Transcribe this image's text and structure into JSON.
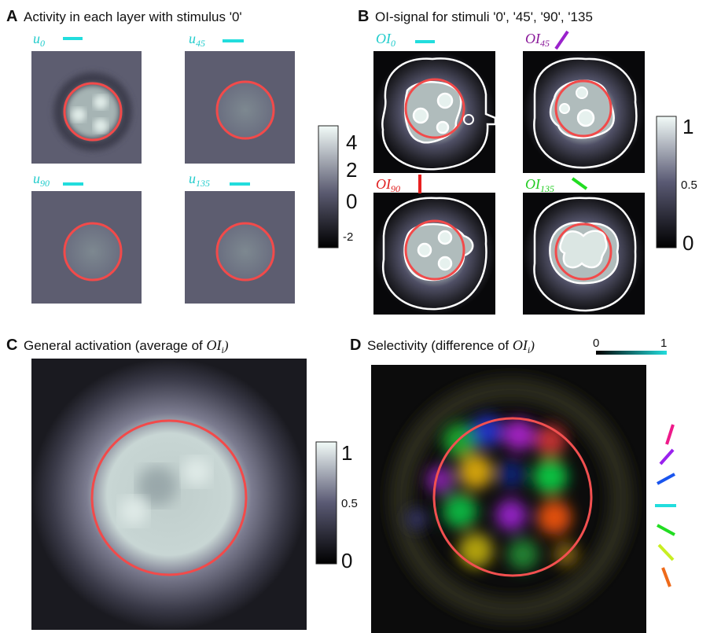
{
  "panels": [
    {
      "letter": "A",
      "title": "Activity in each layer with stimulus '0'",
      "images": [
        {
          "label": "u",
          "sub": "0"
        },
        {
          "label": "u",
          "sub": "45"
        },
        {
          "label": "u",
          "sub": "90"
        },
        {
          "label": "u",
          "sub": "135"
        }
      ],
      "colorbar": {
        "ticks": [
          4,
          2,
          0,
          -2
        ]
      }
    },
    {
      "letter": "B",
      "title": "OI-signal for stimuli '0', '45', '90', '135",
      "images": [
        {
          "label": "OI",
          "sub": "0"
        },
        {
          "label": "OI",
          "sub": "45"
        },
        {
          "label": "OI",
          "sub": "90"
        },
        {
          "label": "OI",
          "sub": "135"
        }
      ],
      "colorbar": {
        "ticks": [
          1,
          0.5,
          0
        ]
      }
    },
    {
      "letter": "C",
      "title": "General activation (average of ",
      "title_math": "OI",
      "title_sub": "i",
      "title_end": ")",
      "colorbar": {
        "ticks": [
          1,
          0.5,
          0
        ]
      }
    },
    {
      "letter": "D",
      "title": "Selectivity (difference of ",
      "title_math": "OI",
      "title_sub": "i",
      "title_end": ")",
      "colorbar": {
        "ticks": [
          0,
          1
        ]
      }
    }
  ]
}
